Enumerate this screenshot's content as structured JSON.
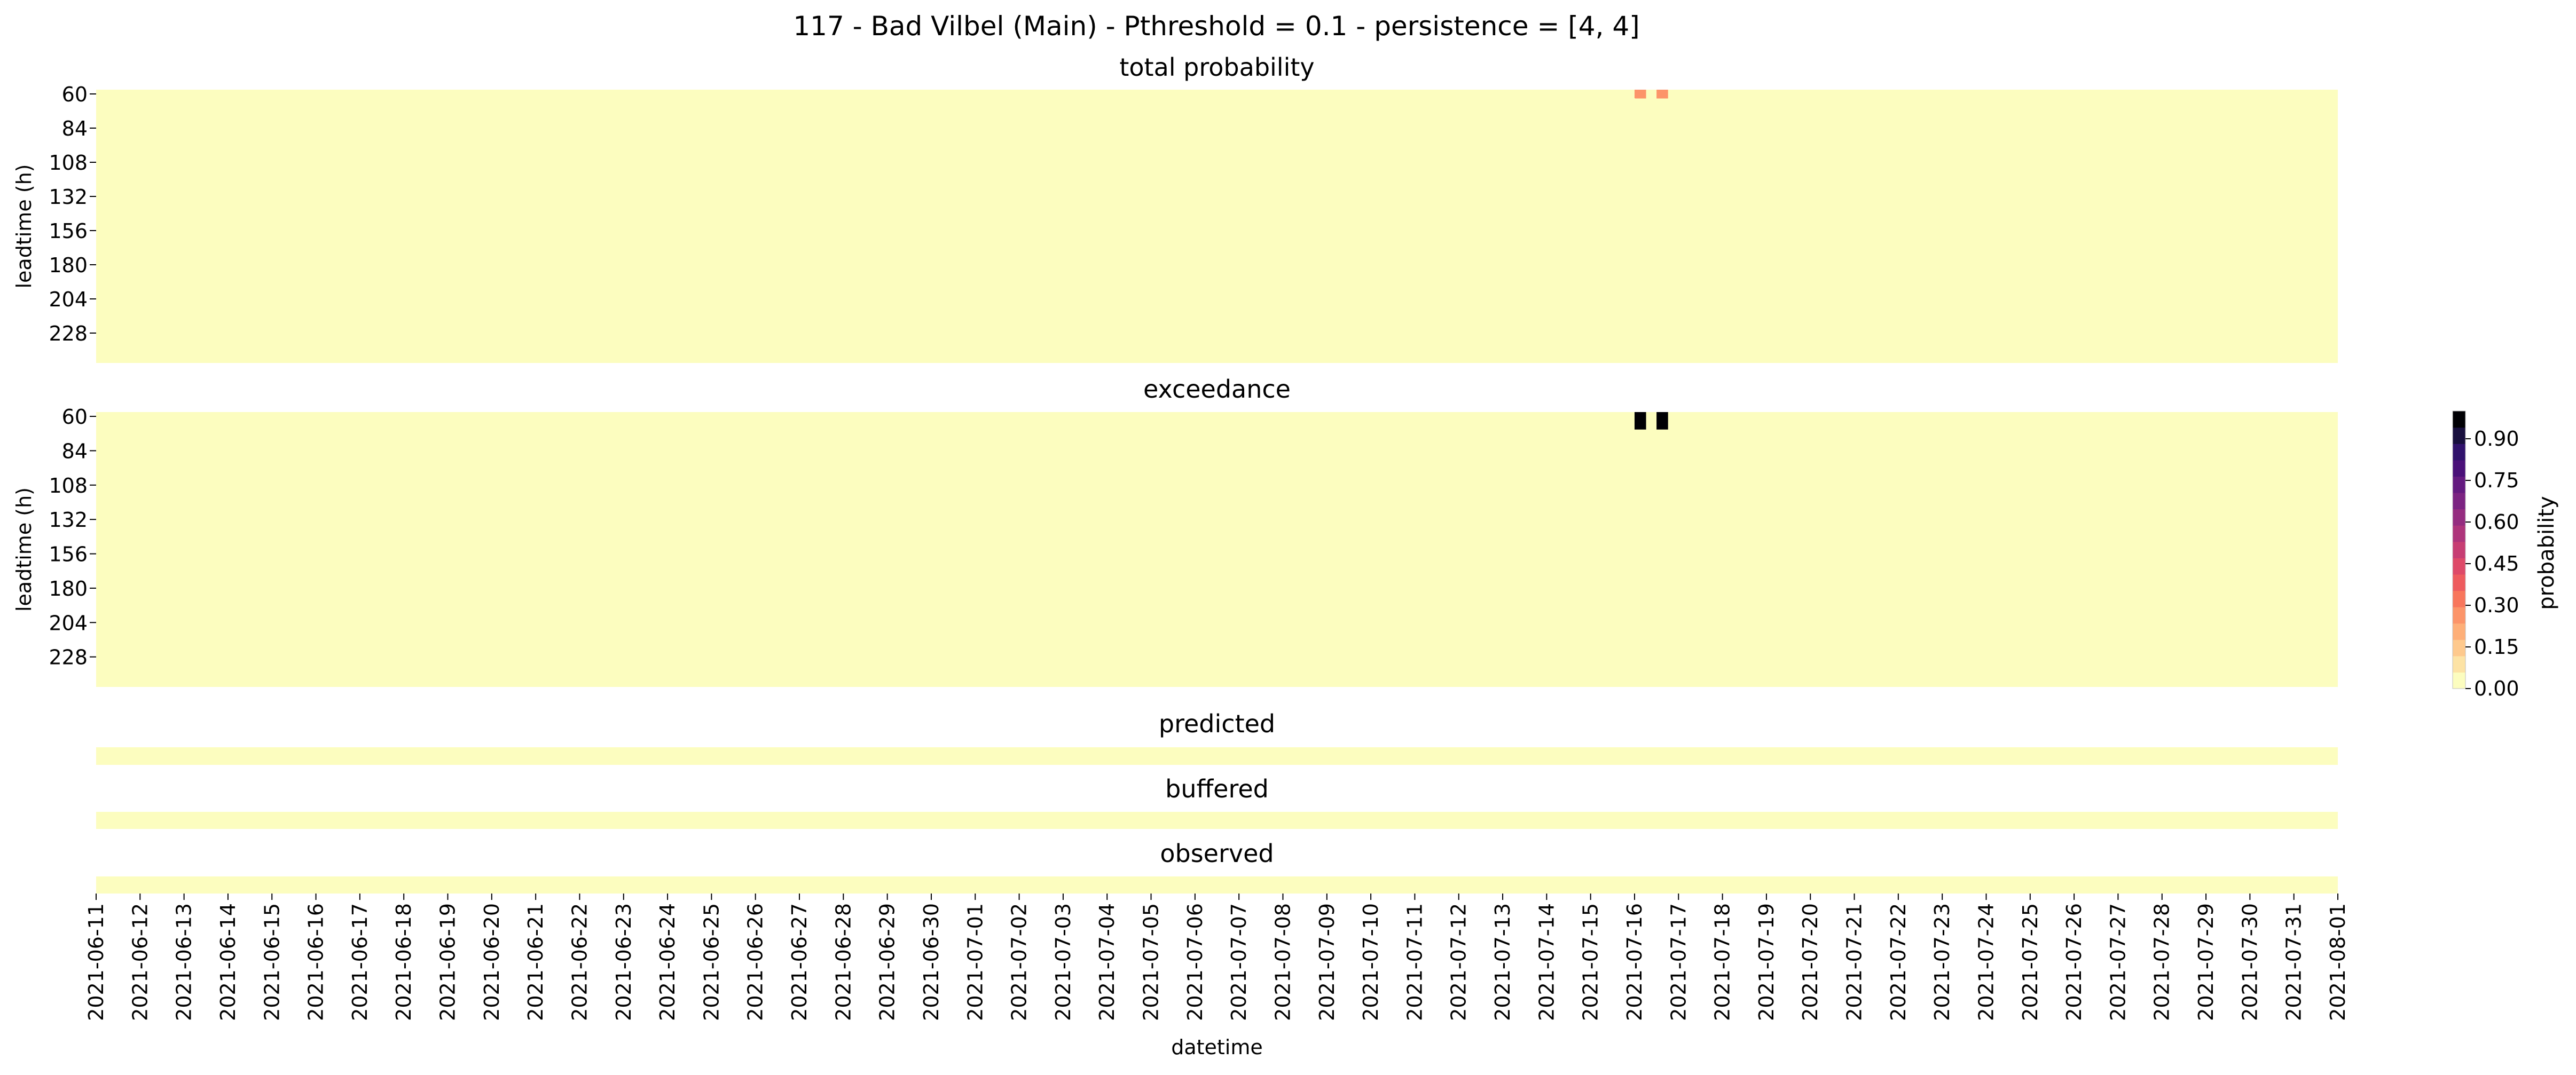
{
  "figure": {
    "title": "117 - Bad Vilbel (Main) - Pthreshold = 0.1 - persistence = [4, 4]"
  },
  "colorbar": {
    "label": "probability",
    "ticks": [
      "0.00",
      "0.15",
      "0.30",
      "0.45",
      "0.60",
      "0.75",
      "0.90"
    ],
    "colors": [
      "#fcfdbf",
      "#fde3a5",
      "#fec98d",
      "#feaf78",
      "#fc9469",
      "#f8765c",
      "#ee5b5e",
      "#de4968",
      "#c73d73",
      "#ae347b",
      "#952c80",
      "#7c2382",
      "#641a80",
      "#4a1079",
      "#30126c",
      "#180f3e",
      "#000004"
    ]
  },
  "chart_data": [
    {
      "type": "heatmap",
      "title": "total probability",
      "ylabel": "leadtime (h)",
      "y_ticks": [
        "60",
        "84",
        "108",
        "132",
        "156",
        "180",
        "204",
        "228"
      ],
      "y_start": 60,
      "y_step": 6,
      "y_count": 32,
      "x_start": "2021-06-11",
      "x_end": "2021-08-01",
      "x_step_hours": 12,
      "background_value": 0.0,
      "cells": [
        {
          "x": "2021-07-15 12:00",
          "y": 60,
          "value": 0.05
        },
        {
          "x": "2021-07-16 00:00",
          "y": 60,
          "value": 0.3
        },
        {
          "x": "2021-07-16 12:00",
          "y": 60,
          "value": 0.3
        },
        {
          "x": "2021-07-15 18:00",
          "y": 66,
          "value": 0.05
        },
        {
          "x": "2021-07-16 00:00",
          "y": 72,
          "value": 0.05
        },
        {
          "x": "2021-07-15 06:00",
          "y": 108,
          "value": 0.05
        },
        {
          "x": "2021-07-15 12:00",
          "y": 114,
          "value": 0.05
        },
        {
          "x": "2021-07-16 00:00",
          "y": 114,
          "value": 0.05
        }
      ],
      "colorbar_range": [
        0,
        1
      ]
    },
    {
      "type": "heatmap",
      "title": "exceedance",
      "ylabel": "leadtime (h)",
      "y_ticks": [
        "60",
        "84",
        "108",
        "132",
        "156",
        "180",
        "204",
        "228"
      ],
      "y_start": 60,
      "y_step": 6,
      "y_count": 32,
      "x_start": "2021-06-11",
      "x_end": "2021-08-01",
      "x_step_hours": 12,
      "background_value": 0.0,
      "cells": [
        {
          "x": "2021-07-16 00:00",
          "y": 60,
          "value": 1.0
        },
        {
          "x": "2021-07-16 12:00",
          "y": 60,
          "value": 1.0
        },
        {
          "x": "2021-07-16 00:00",
          "y": 66,
          "value": 1.0
        },
        {
          "x": "2021-07-16 12:00",
          "y": 66,
          "value": 1.0
        }
      ],
      "colorbar_range": [
        0,
        1
      ]
    },
    {
      "type": "heatmap",
      "title": "predicted",
      "x_start": "2021-06-11",
      "x_end": "2021-08-01",
      "background_value": 0.0,
      "cells": []
    },
    {
      "type": "heatmap",
      "title": "buffered",
      "x_start": "2021-06-11",
      "x_end": "2021-08-01",
      "background_value": 0.0,
      "cells": []
    },
    {
      "type": "heatmap",
      "title": "observed",
      "xlabel": "datetime",
      "x_start": "2021-06-11",
      "x_end": "2021-08-01",
      "x_tick_labels": [
        "2021-06-11",
        "2021-06-12",
        "2021-06-13",
        "2021-06-14",
        "2021-06-15",
        "2021-06-16",
        "2021-06-17",
        "2021-06-18",
        "2021-06-19",
        "2021-06-20",
        "2021-06-21",
        "2021-06-22",
        "2021-06-23",
        "2021-06-24",
        "2021-06-25",
        "2021-06-26",
        "2021-06-27",
        "2021-06-28",
        "2021-06-29",
        "2021-06-30",
        "2021-07-01",
        "2021-07-02",
        "2021-07-03",
        "2021-07-04",
        "2021-07-05",
        "2021-07-06",
        "2021-07-07",
        "2021-07-08",
        "2021-07-09",
        "2021-07-10",
        "2021-07-11",
        "2021-07-12",
        "2021-07-13",
        "2021-07-14",
        "2021-07-15",
        "2021-07-16",
        "2021-07-17",
        "2021-07-18",
        "2021-07-19",
        "2021-07-20",
        "2021-07-21",
        "2021-07-22",
        "2021-07-23",
        "2021-07-24",
        "2021-07-25",
        "2021-07-26",
        "2021-07-27",
        "2021-07-28",
        "2021-07-29",
        "2021-07-30",
        "2021-07-31",
        "2021-08-01"
      ],
      "background_value": 0.0,
      "cells": []
    }
  ]
}
